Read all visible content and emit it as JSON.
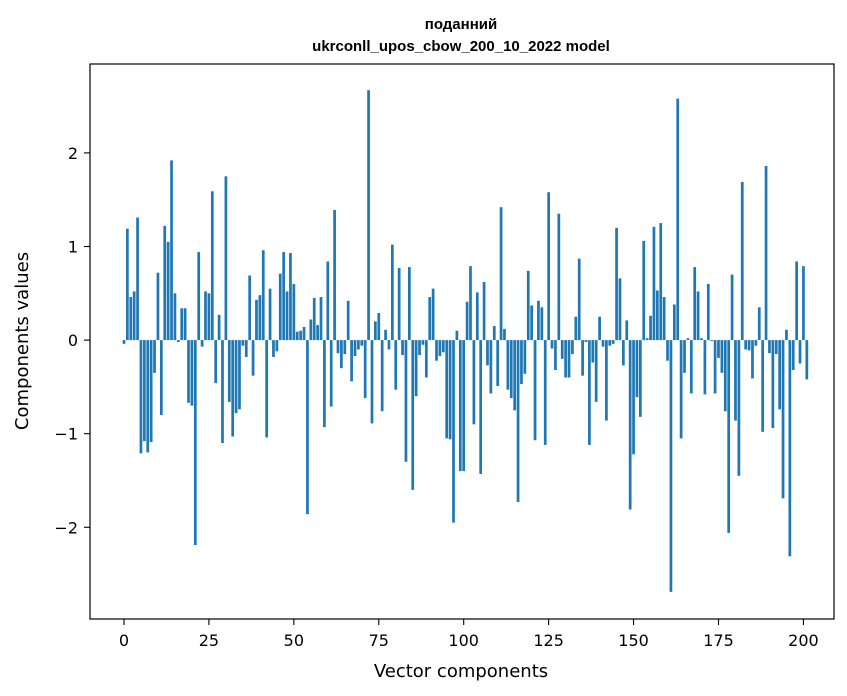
{
  "chart_data": {
    "type": "bar",
    "title_line1": "поданний",
    "title_line2": "ukrconll_upos_cbow_200_10_2022 model",
    "xlabel": "Vector components",
    "ylabel": "Components values",
    "xlim": [
      -10,
      209
    ],
    "ylim": [
      -2.98,
      2.95
    ],
    "xticks": [
      0,
      25,
      50,
      75,
      100,
      125,
      150,
      175,
      200
    ],
    "xtick_labels": [
      "0",
      "25",
      "50",
      "75",
      "100",
      "125",
      "150",
      "175",
      "200"
    ],
    "yticks": [
      -2,
      -1,
      0,
      1,
      2
    ],
    "ytick_labels": [
      "−2",
      "−1",
      "0",
      "1",
      "2"
    ],
    "bar_color": "#1f77b4",
    "grid": false,
    "values": [
      -0.04,
      1.19,
      0.46,
      0.52,
      1.31,
      -1.21,
      -1.08,
      -1.2,
      -1.09,
      -0.35,
      0.72,
      -0.8,
      1.22,
      1.05,
      1.92,
      0.5,
      -0.02,
      0.34,
      0.34,
      -0.67,
      -0.7,
      -2.19,
      0.94,
      -0.07,
      0.52,
      0.5,
      1.59,
      -0.46,
      0.27,
      -1.1,
      1.75,
      -0.66,
      -1.03,
      -0.78,
      -0.74,
      -0.06,
      -0.18,
      0.69,
      -0.38,
      0.43,
      0.48,
      0.96,
      -1.04,
      0.55,
      -0.18,
      -0.12,
      0.71,
      0.94,
      0.52,
      0.93,
      0.6,
      0.09,
      0.1,
      0.14,
      -1.86,
      0.22,
      0.45,
      0.16,
      0.46,
      -0.93,
      0.84,
      -0.71,
      1.39,
      -0.14,
      -0.3,
      -0.15,
      0.42,
      -0.44,
      -0.17,
      -0.1,
      -0.06,
      -0.62,
      2.67,
      -0.89,
      0.2,
      0.29,
      -0.76,
      0.11,
      -0.1,
      1.02,
      -0.53,
      0.77,
      -0.16,
      -1.3,
      0.78,
      -1.6,
      -0.6,
      -0.16,
      -0.05,
      -0.4,
      0.46,
      0.55,
      -0.22,
      -0.17,
      -0.13,
      -1.05,
      -1.06,
      -1.95,
      0.1,
      -1.4,
      -1.4,
      0.41,
      0.79,
      -0.9,
      0.51,
      -1.43,
      0.62,
      -0.27,
      -0.57,
      0.15,
      -0.49,
      1.42,
      0.12,
      -0.53,
      -0.62,
      -0.75,
      -1.73,
      -0.47,
      -0.36,
      0.74,
      0.37,
      -1.07,
      0.42,
      0.35,
      -1.12,
      1.58,
      -0.09,
      -0.32,
      1.35,
      -0.2,
      -0.4,
      -0.4,
      -0.15,
      0.25,
      0.87,
      -0.38,
      -0.02,
      -1.12,
      -0.24,
      -0.66,
      0.25,
      -0.07,
      -0.86,
      -0.06,
      -0.04,
      1.2,
      0.66,
      -0.27,
      0.21,
      -1.81,
      -1.22,
      -0.61,
      -0.82,
      1.06,
      0.02,
      0.26,
      1.21,
      0.53,
      1.25,
      0.46,
      -0.22,
      -2.69,
      0.38,
      2.58,
      -1.05,
      -0.35,
      0.02,
      -0.57,
      0.78,
      0.52,
      0.02,
      -0.58,
      0.6,
      -0.01,
      -0.57,
      -0.19,
      -0.35,
      -0.76,
      -2.06,
      0.7,
      -0.86,
      -1.45,
      1.69,
      -0.1,
      -0.11,
      -0.41,
      -0.06,
      0.35,
      -0.98,
      1.86,
      -0.14,
      -0.94,
      -0.15,
      -0.74,
      -1.69,
      0.11,
      -2.31,
      -0.32,
      0.84,
      -0.25,
      0.79,
      -0.42
    ]
  }
}
